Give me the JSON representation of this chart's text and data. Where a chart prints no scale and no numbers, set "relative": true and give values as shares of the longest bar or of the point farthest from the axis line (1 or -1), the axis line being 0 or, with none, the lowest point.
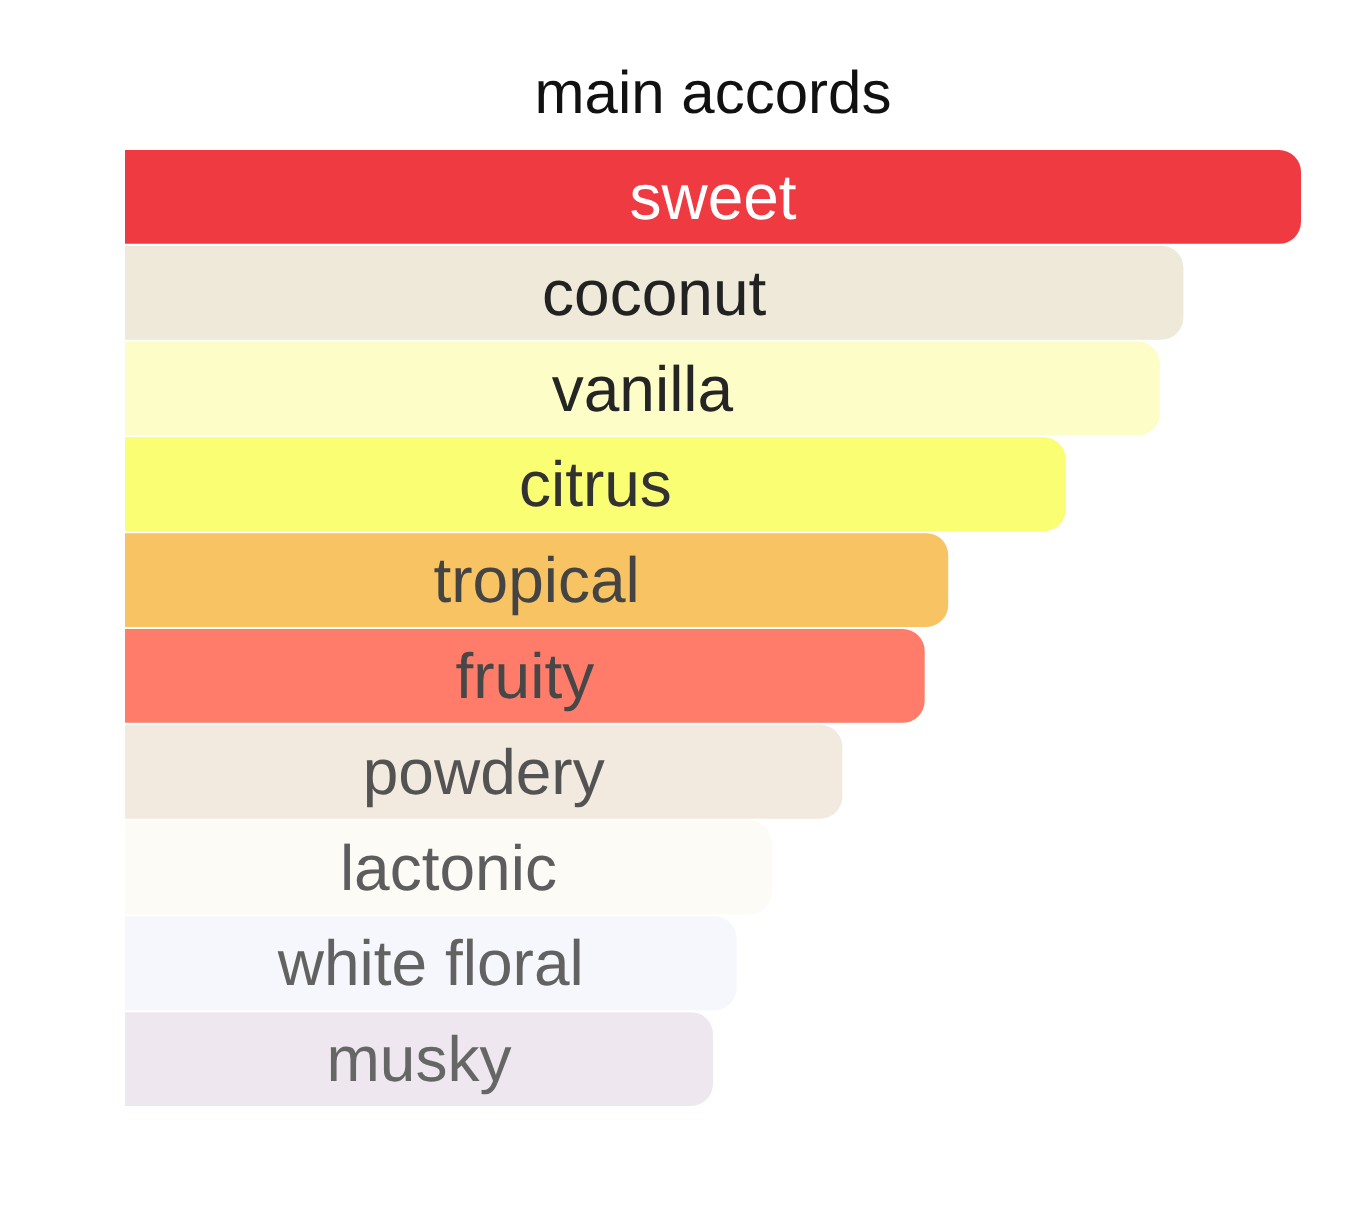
{
  "chart_data": {
    "type": "bar",
    "orientation": "horizontal",
    "relative": true,
    "title": "main accords",
    "categories": [
      "sweet",
      "coconut",
      "vanilla",
      "citrus",
      "tropical",
      "fruity",
      "powdery",
      "lactonic",
      "white floral",
      "musky"
    ],
    "values": [
      1,
      0.9,
      0.88,
      0.8,
      0.7,
      0.68,
      0.61,
      0.55,
      0.52,
      0.5
    ],
    "colors": [
      "#ee3a40",
      "#efe9d9",
      "#fdfdc8",
      "#fafe73",
      "#f7c363",
      "#fe7c69",
      "#f3eadf",
      "#fcfbf6",
      "#f6f6fd",
      "#efe7ef"
    ],
    "tick_labels": false,
    "grid": false
  }
}
